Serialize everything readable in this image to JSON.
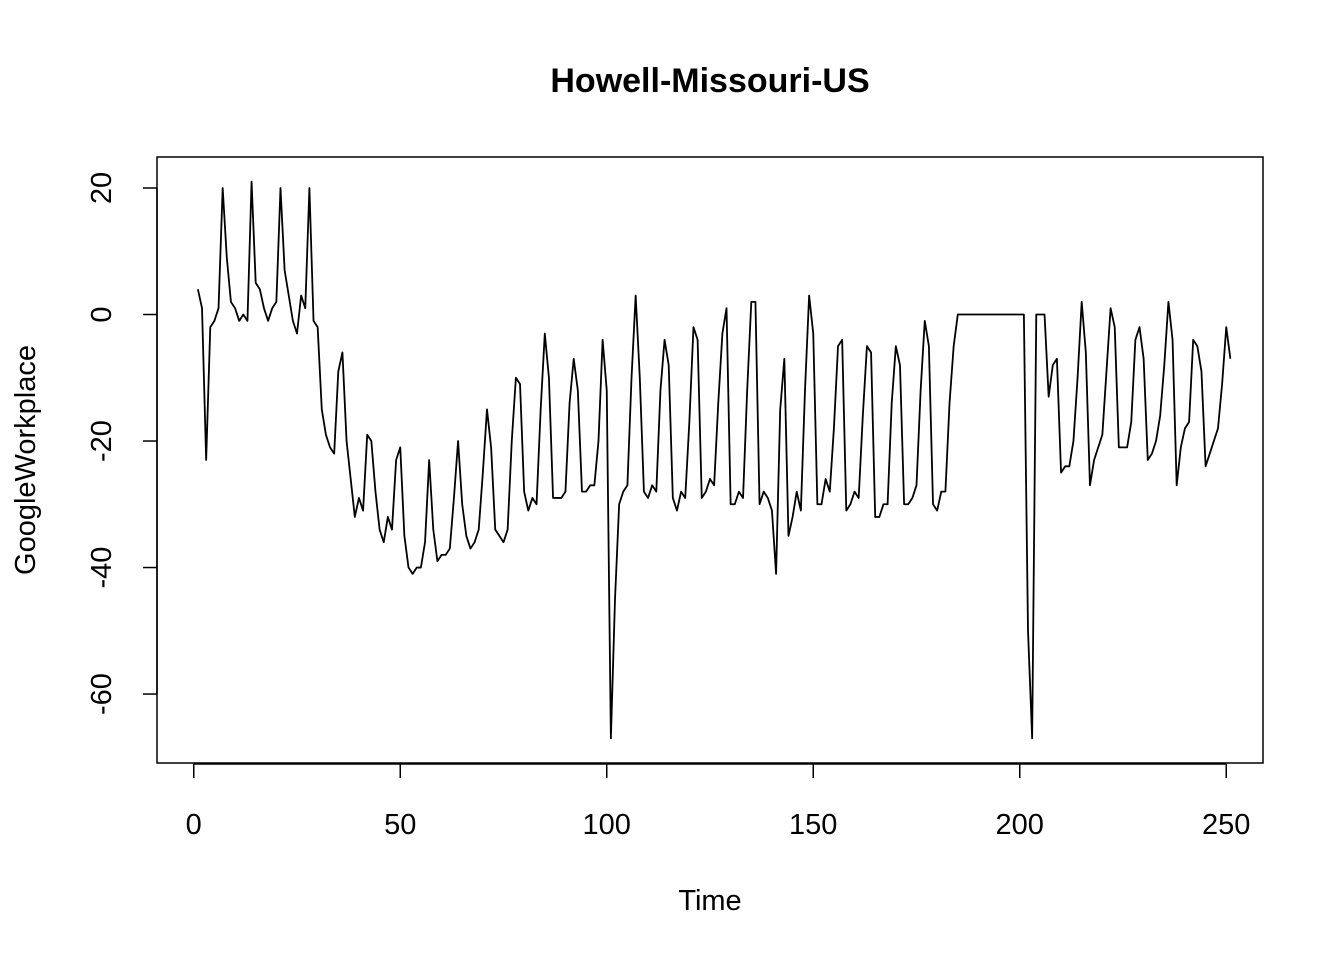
{
  "chart_data": {
    "type": "line",
    "title": "Howell-Missouri-US",
    "xlabel": "Time",
    "ylabel": "GoogleWorkplace",
    "xlim": [
      -8.9,
      258.9
    ],
    "ylim": [
      -70.9,
      24.9
    ],
    "x_ticks": [
      0,
      50,
      100,
      150,
      200,
      250
    ],
    "y_ticks": [
      -60,
      -40,
      -20,
      0,
      20
    ],
    "x_tick_labels": [
      "0",
      "50",
      "100",
      "150",
      "200",
      "250"
    ],
    "y_tick_labels": [
      "-60",
      "-40",
      "-20",
      "0",
      "20"
    ],
    "grid": false,
    "line_color": "#000000",
    "series": [
      {
        "x_start": 1,
        "values": [
          4,
          1,
          -23,
          -2,
          -1,
          1,
          20,
          9,
          2,
          1,
          -1,
          0,
          -1,
          21,
          5,
          4,
          1,
          -1,
          1,
          2,
          20,
          7,
          3,
          -1,
          -3,
          3,
          1,
          20,
          -1,
          -2,
          -15,
          -19,
          -21,
          -22,
          -9,
          -6,
          -20,
          -26,
          -32,
          -29,
          -31,
          -19,
          -20,
          -28,
          -34,
          -36,
          -32,
          -34,
          -23,
          -21,
          -35,
          -40,
          -41,
          -40,
          -40,
          -36,
          -23,
          -34,
          -39,
          -38,
          -38,
          -37,
          -29,
          -20,
          -30,
          -35,
          -37,
          -36,
          -34,
          -25,
          -15,
          -21,
          -34,
          -35,
          -36,
          -34,
          -20,
          -10,
          -11,
          -28,
          -31,
          -29,
          -30,
          -15,
          -3,
          -10,
          -29,
          -29,
          -29,
          -28,
          -14,
          -7,
          -12,
          -28,
          -28,
          -27,
          -27,
          -20,
          -4,
          -12,
          -67,
          -45,
          -30,
          -28,
          -27,
          -10,
          3,
          -10,
          -28,
          -29,
          -27,
          -28,
          -12,
          -4,
          -8,
          -29,
          -31,
          -28,
          -29,
          -17,
          -2,
          -4,
          -29,
          -28,
          -26,
          -27,
          -14,
          -3,
          1,
          -30,
          -30,
          -28,
          -29,
          -12,
          2,
          2,
          -30,
          -28,
          -29,
          -31,
          -41,
          -15,
          -7,
          -35,
          -32,
          -28,
          -31,
          -12,
          3,
          -3,
          -30,
          -30,
          -26,
          -28,
          -18,
          -5,
          -4,
          -31,
          -30,
          -28,
          -29,
          -16,
          -5,
          -6,
          -32,
          -32,
          -30,
          -30,
          -14,
          -5,
          -8,
          -30,
          -30,
          -29,
          -27,
          -12,
          -1,
          -5,
          -30,
          -31,
          -28,
          -28,
          -14,
          -5,
          0,
          0,
          0,
          0,
          0,
          0,
          0,
          0,
          0,
          0,
          0,
          0,
          0,
          0,
          0,
          0,
          0,
          -50,
          -67,
          0,
          0,
          0,
          -13,
          -8,
          -7,
          -25,
          -24,
          -24,
          -20,
          -10,
          2,
          -6,
          -27,
          -23,
          -21,
          -19,
          -9,
          1,
          -2,
          -21,
          -21,
          -21,
          -17,
          -4,
          -2,
          -7,
          -23,
          -22,
          -20,
          -16,
          -8,
          2,
          -4,
          -27,
          -21,
          -18,
          -17,
          -4,
          -5,
          -9,
          -24,
          -22,
          -20,
          -18,
          -11,
          -2,
          -7
        ]
      }
    ]
  }
}
